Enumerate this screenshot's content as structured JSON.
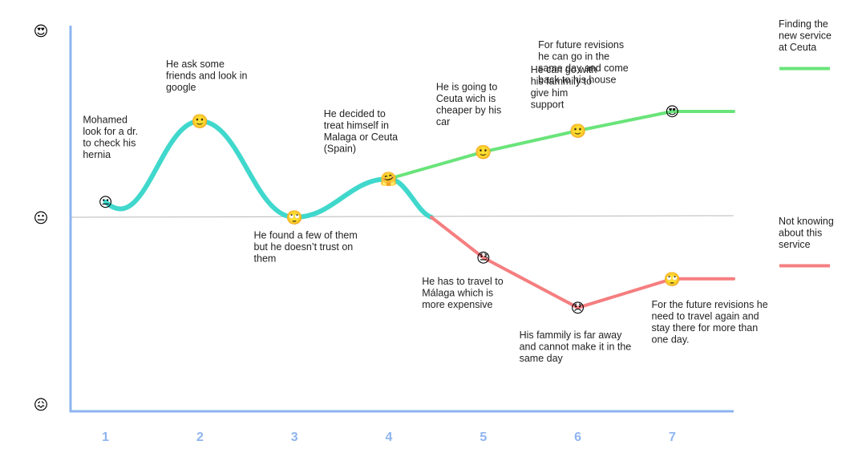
{
  "chart_data": {
    "type": "line",
    "title": "",
    "xlabel": "",
    "ylabel": "",
    "categories": [
      "1",
      "2",
      "3",
      "4",
      "5",
      "6",
      "7"
    ],
    "x": [
      1,
      2,
      3,
      4,
      5,
      6,
      7
    ],
    "xlim": [
      0.63,
      7.65
    ],
    "ylim": [
      -1,
      1
    ],
    "baseline_y": 0,
    "y_axis_icons": [
      {
        "y": 0.97,
        "icon": "heart-eyes-icon",
        "glyph": "😍"
      },
      {
        "y": 0.0,
        "icon": "neutral-face-icon",
        "glyph": "😐"
      },
      {
        "y": -0.97,
        "icon": "confounded-face-icon",
        "glyph": "😖"
      }
    ],
    "colors": {
      "journey": "#40d8cc",
      "positive": "#6ae47a",
      "negative": "#f57e80",
      "axis": "#8eb4f0",
      "tick": "#8eb4f0",
      "baseline": "#b8b8b8"
    },
    "legend": [
      {
        "series": "positive",
        "lines": [
          "Finding the",
          "new service",
          "at Ceuta"
        ]
      },
      {
        "series": "negative",
        "lines": [
          "Not knowing",
          "about this",
          "service"
        ]
      }
    ],
    "series": [
      {
        "key": "journey",
        "x": [
          1,
          2,
          3,
          4
        ],
        "y": [
          0.08,
          0.5,
          0.0,
          0.2
        ],
        "extend_to": {
          "x": 4.45,
          "y": 0.0
        }
      },
      {
        "key": "positive",
        "name": "Finding the new service at Ceuta",
        "x": [
          4,
          5,
          6,
          7,
          7.65
        ],
        "y": [
          0.2,
          0.34,
          0.45,
          0.55,
          0.55
        ]
      },
      {
        "key": "negative",
        "name": "Not knowing about this service",
        "x": [
          4.45,
          5,
          6,
          7,
          7.65
        ],
        "y": [
          0.0,
          -0.21,
          -0.47,
          -0.32,
          -0.32
        ]
      }
    ],
    "points": [
      {
        "x": 1,
        "y": 0.08,
        "icon": "neutral-face-icon",
        "glyph": "😐"
      },
      {
        "x": 2,
        "y": 0.5,
        "icon": "smiling-face-icon",
        "glyph": "🙂"
      },
      {
        "x": 3,
        "y": 0.0,
        "icon": "eye-roll-face-icon",
        "glyph": "🙄"
      },
      {
        "x": 4,
        "y": 0.2,
        "icon": "hugging-face-icon",
        "glyph": "🤗"
      },
      {
        "x": 5,
        "y": 0.34,
        "icon": "smiling-face-icon",
        "glyph": "🙂"
      },
      {
        "x": 5,
        "y": -0.21,
        "icon": "cold-sweat-face-icon",
        "glyph": "😓"
      },
      {
        "x": 6,
        "y": 0.45,
        "icon": "smiling-face-icon",
        "glyph": "🙂"
      },
      {
        "x": 6,
        "y": -0.47,
        "icon": "disappointed-face-icon",
        "glyph": "😞"
      },
      {
        "x": 7,
        "y": 0.55,
        "icon": "heart-eyes-icon",
        "glyph": "😍"
      },
      {
        "x": 7,
        "y": -0.32,
        "icon": "eye-roll-face-icon",
        "glyph": "🙄"
      }
    ],
    "annotations": [
      {
        "x": 0.76,
        "y": 0.49,
        "lines": [
          "Mohamed",
          "look for a dr.",
          "to check his",
          "hernia"
        ]
      },
      {
        "x": 1.64,
        "y": 0.78,
        "lines": [
          "He ask some",
          "friends and look in",
          "google"
        ]
      },
      {
        "x": 2.57,
        "y": -0.11,
        "lines": [
          "He found a few of them",
          "but he doesn’t trust on",
          "them"
        ]
      },
      {
        "x": 3.31,
        "y": 0.52,
        "lines": [
          "He decided to",
          "treat himself in",
          "Malaga or Ceuta",
          "(Spain)"
        ]
      },
      {
        "x": 4.5,
        "y": 0.66,
        "lines": [
          "He is going to",
          "Ceuta wich is",
          "cheaper by his",
          "car"
        ]
      },
      {
        "x": 5.5,
        "y": 0.75,
        "lines": [
          "He can go with",
          "his fammily to",
          "give him",
          "support"
        ]
      },
      {
        "x": 5.58,
        "y": 0.88,
        "lines": [
          "For future revisions",
          "he can go in the",
          "same day and come",
          "back to his house"
        ],
        "anchor_x": 5.6
      },
      {
        "x": 4.35,
        "y": -0.35,
        "lines": [
          "He has to travel to",
          "Málaga which is",
          "more expensive"
        ]
      },
      {
        "x": 5.38,
        "y": -0.63,
        "lines": [
          "His fammily is far away",
          "and cannot make it in the",
          "same day"
        ]
      },
      {
        "x": 6.78,
        "y": -0.47,
        "lines": [
          "For the future revisions he",
          "need to travel again and",
          "stay there for more than",
          "one day."
        ]
      }
    ]
  }
}
